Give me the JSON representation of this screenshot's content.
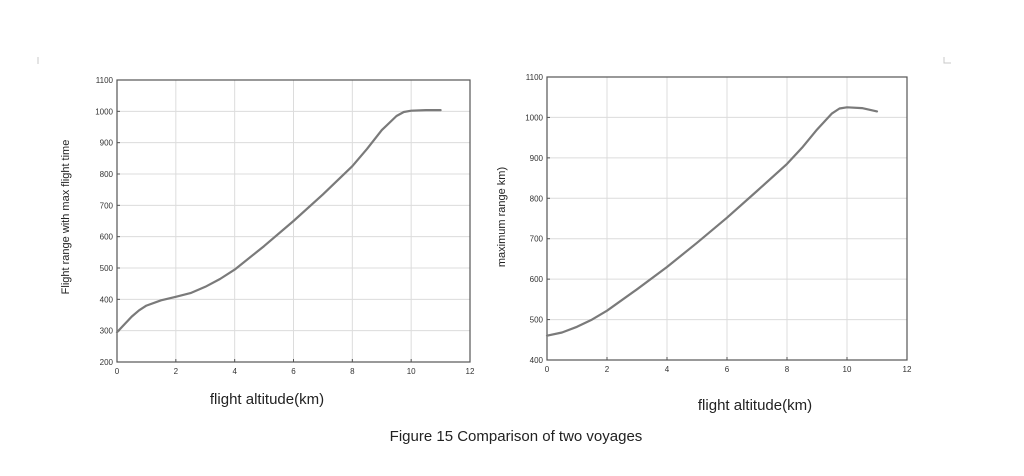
{
  "caption": "Figure 15 Comparison of two voyages",
  "chart_data": [
    {
      "type": "line",
      "title": "",
      "xlabel": "flight altitude(km)",
      "ylabel": "Flight range with max flight time",
      "xlim": [
        0,
        12
      ],
      "ylim": [
        200,
        1100
      ],
      "xticks": [
        0,
        2,
        4,
        6,
        8,
        10,
        12
      ],
      "yticks": [
        200,
        300,
        400,
        500,
        600,
        700,
        800,
        900,
        1000,
        1100
      ],
      "grid": true,
      "series": [
        {
          "x": [
            0,
            0.25,
            0.5,
            0.75,
            1,
            1.5,
            2,
            2.5,
            3,
            3.5,
            4,
            5,
            6,
            7,
            8,
            8.5,
            9,
            9.5,
            9.75,
            10,
            10.5,
            11
          ],
          "y": [
            295,
            320,
            345,
            365,
            380,
            397,
            408,
            420,
            440,
            465,
            495,
            570,
            650,
            735,
            825,
            880,
            940,
            985,
            998,
            1002,
            1004,
            1004
          ]
        }
      ]
    },
    {
      "type": "line",
      "title": "",
      "xlabel": "flight altitude(km)",
      "ylabel": "maximum range km)",
      "xlim": [
        0,
        12
      ],
      "ylim": [
        400,
        1100
      ],
      "xticks": [
        0,
        2,
        4,
        6,
        8,
        10,
        12
      ],
      "yticks": [
        400,
        500,
        600,
        700,
        800,
        900,
        1000,
        1100
      ],
      "grid": true,
      "series": [
        {
          "x": [
            0,
            0.5,
            1,
            1.5,
            2,
            3,
            4,
            5,
            6,
            7,
            8,
            8.5,
            9,
            9.5,
            9.75,
            10,
            10.5,
            11
          ],
          "y": [
            460,
            468,
            482,
            500,
            522,
            575,
            630,
            690,
            752,
            818,
            885,
            925,
            970,
            1010,
            1022,
            1025,
            1023,
            1015
          ]
        }
      ]
    }
  ]
}
